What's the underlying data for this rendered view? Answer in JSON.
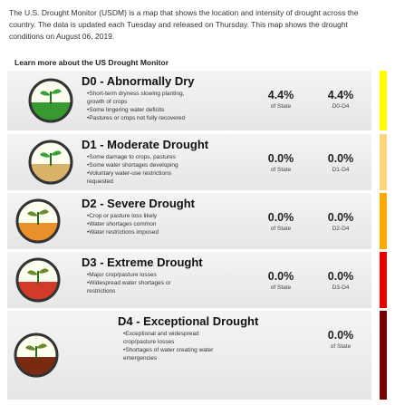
{
  "intro": "The U.S. Drought Monitor (USDM) is a map that shows the location and intensity of drought across the country. The data is updated each Tuesday and released on Thursday. This map shows the drought conditions on August 06, 2019.",
  "link": "Learn more about the US Drought Monitor",
  "levels": [
    {
      "title": "D0 - Abnormally Dry",
      "bullets": [
        "•Short-term dryness slowing planting, growth of crops",
        "•Some lingering water deficits",
        "•Pastures or crops not fully recovered"
      ],
      "stats": [
        {
          "value": "4.4%",
          "label": "of State"
        },
        {
          "value": "4.4%",
          "label": "D0-D4"
        }
      ]
    },
    {
      "title": "D1 - Moderate Drought",
      "bullets": [
        "•Some damage to crops, pastures",
        "•Some water shortages developing",
        "•Voluntary water-use restrictions requested"
      ],
      "stats": [
        {
          "value": "0.0%",
          "label": "of State"
        },
        {
          "value": "0.0%",
          "label": "D1-D4"
        }
      ]
    },
    {
      "title": "D2 - Severe Drought",
      "bullets": [
        "•Crop or pasture loss likely",
        "•Water shortages common",
        "•Water restrictions imposed"
      ],
      "stats": [
        {
          "value": "0.0%",
          "label": "of State"
        },
        {
          "value": "0.0%",
          "label": "D2-D4"
        }
      ]
    },
    {
      "title": "D3 - Extreme Drought",
      "bullets": [
        "•Major crop/pasture losses",
        "•Widespread water shortages or restrictions"
      ],
      "stats": [
        {
          "value": "0.0%",
          "label": "of State"
        },
        {
          "value": "0.0%",
          "label": "D3-D4"
        }
      ]
    },
    {
      "title": "D4 - Exceptional Drought",
      "bullets": [
        "•Exceptional and widespread crop/pasture losses",
        "•Shortages of water creating water emergencies"
      ],
      "stats": [
        {
          "value": "0.0%",
          "label": "of State"
        }
      ]
    }
  ]
}
